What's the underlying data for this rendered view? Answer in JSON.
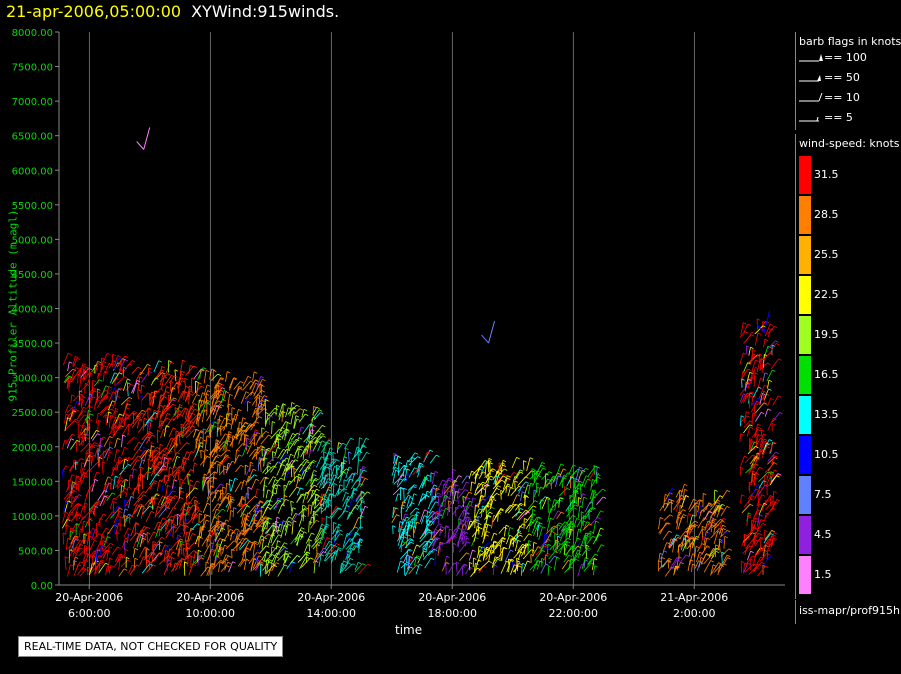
{
  "header": {
    "date": "21-apr-2006,05:00:00",
    "product": "XYWind:915winds."
  },
  "notice": "REAL-TIME DATA, NOT CHECKED FOR QUALITY",
  "legend": {
    "barb_title": "barb flags in knots",
    "barbs": [
      "== 100",
      "== 50",
      "== 10",
      "== 5"
    ],
    "speed_title": "wind-speed: knots",
    "speeds": [
      {
        "label": "31.5",
        "color": "#ff0000"
      },
      {
        "label": "28.5",
        "color": "#ff8000"
      },
      {
        "label": "25.5",
        "color": "#ffb000"
      },
      {
        "label": "22.5",
        "color": "#ffff00"
      },
      {
        "label": "19.5",
        "color": "#a0ff20"
      },
      {
        "label": "16.5",
        "color": "#00e000"
      },
      {
        "label": "13.5",
        "color": "#00ffff"
      },
      {
        "label": "10.5",
        "color": "#0000ff"
      },
      {
        "label": "7.5",
        "color": "#6080ff"
      },
      {
        "label": "4.5",
        "color": "#9020e0"
      },
      {
        "label": "1.5",
        "color": "#ff80ff"
      }
    ],
    "source": "iss-mapr/prof915h"
  },
  "chart_data": {
    "type": "scatter",
    "title": "21-apr-2006,05:00:00  XYWind:915winds.",
    "ylabel": "915 Profiler Altitude (m agl)",
    "xlabel": "time",
    "ylim": [
      0,
      8000
    ],
    "yticks": [
      "0.00",
      "500.00",
      "1000.00",
      "1500.00",
      "2000.00",
      "2500.00",
      "3000.00",
      "3500.00",
      "4000.00",
      "4500.00",
      "5000.00",
      "5500.00",
      "6000.00",
      "6500.00",
      "7000.00",
      "7500.00",
      "8000.00"
    ],
    "xticks": [
      {
        "hour": 6,
        "line1": "20-Apr-2006",
        "line2": "6:00:00"
      },
      {
        "hour": 10,
        "line1": "20-Apr-2006",
        "line2": "10:00:00"
      },
      {
        "hour": 14,
        "line1": "20-Apr-2006",
        "line2": "14:00:00"
      },
      {
        "hour": 18,
        "line1": "20-Apr-2006",
        "line2": "18:00:00"
      },
      {
        "hour": 22,
        "line1": "20-Apr-2006",
        "line2": "22:00:00"
      },
      {
        "hour": 26,
        "line1": "21-Apr-2006",
        "line2": "2:00:00"
      }
    ],
    "xlim_hours_since_midnight_apr20": [
      5.0,
      29.0
    ],
    "grid": "vertical",
    "segments": [
      {
        "start": 5.1,
        "end": 7.3,
        "top": 3200,
        "color": "#ff0000"
      },
      {
        "start": 7.3,
        "end": 9.5,
        "top": 3100,
        "color": "#ff2000"
      },
      {
        "start": 9.5,
        "end": 11.7,
        "top": 3000,
        "color": "#ff8000"
      },
      {
        "start": 11.7,
        "end": 13.5,
        "top": 2500,
        "color": "#a0ff20"
      },
      {
        "start": 13.5,
        "end": 15.0,
        "top": 2000,
        "color": "#00e0c0"
      },
      {
        "start": 16.0,
        "end": 17.3,
        "top": 1800,
        "color": "#00ffff"
      },
      {
        "start": 17.3,
        "end": 18.5,
        "top": 1500,
        "color": "#9020e0"
      },
      {
        "start": 18.5,
        "end": 20.5,
        "top": 1700,
        "color": "#ffff00"
      },
      {
        "start": 20.5,
        "end": 22.8,
        "top": 1600,
        "color": "#00e000"
      },
      {
        "start": 24.8,
        "end": 27.0,
        "top": 1300,
        "color": "#ff8000"
      },
      {
        "start": 27.5,
        "end": 28.6,
        "top": 3700,
        "color": "#ff0000"
      }
    ]
  }
}
